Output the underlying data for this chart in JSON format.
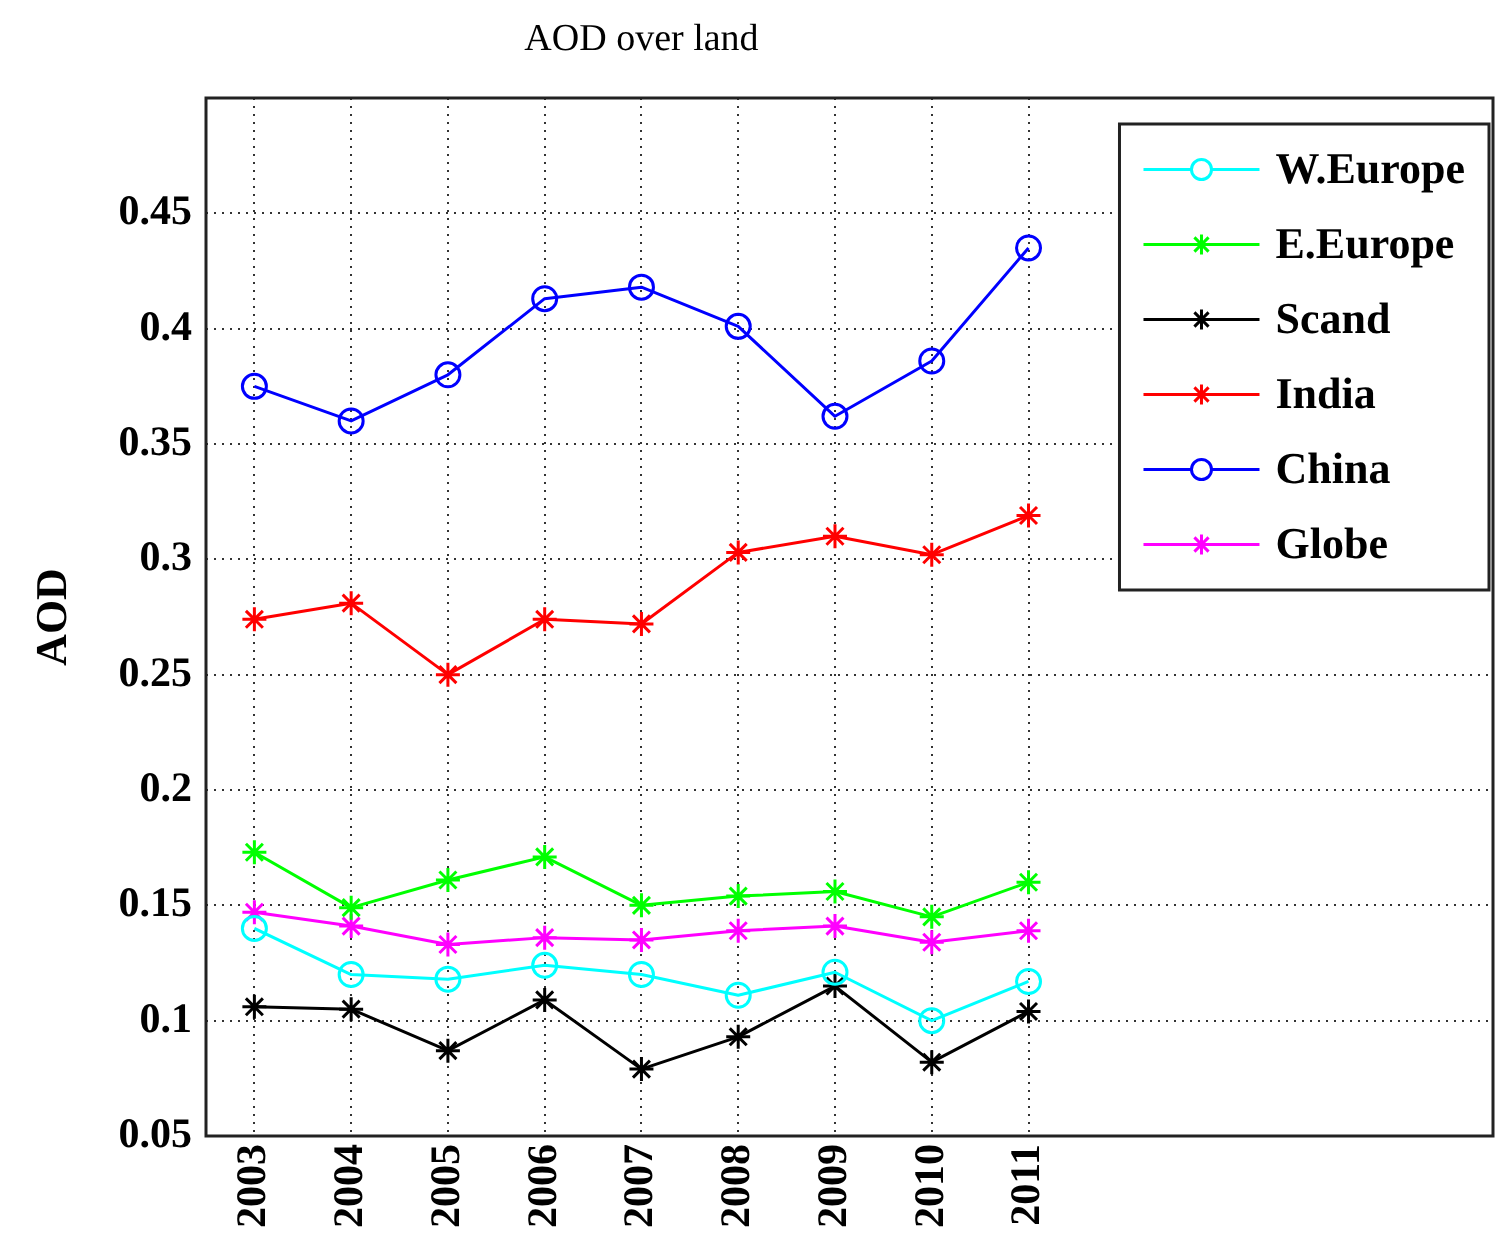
{
  "chart_data": {
    "type": "line",
    "title": "AOD over land",
    "ylabel": "AOD",
    "x": [
      2003,
      2004,
      2005,
      2006,
      2007,
      2008,
      2009,
      2010,
      2011
    ],
    "xlim": [
      2002.5,
      2015.8
    ],
    "xticks": [
      2003,
      2004,
      2005,
      2006,
      2007,
      2008,
      2009,
      2010,
      2011
    ],
    "ylim": [
      0.05,
      0.5
    ],
    "yticks": [
      0.05,
      0.1,
      0.15,
      0.2,
      0.25,
      0.3,
      0.35,
      0.4,
      0.45
    ],
    "grid": true,
    "legend": "top right",
    "series": [
      {
        "name": "W.Europe",
        "color": "#00ffff",
        "marker": "circle",
        "values": [
          0.14,
          0.12,
          0.118,
          0.124,
          0.12,
          0.111,
          0.121,
          0.1,
          0.117
        ]
      },
      {
        "name": "E.Europe",
        "color": "#00ff00",
        "marker": "cross",
        "values": [
          0.173,
          0.149,
          0.161,
          0.171,
          0.15,
          0.154,
          0.156,
          0.145,
          0.16
        ]
      },
      {
        "name": "Scand",
        "color": "#000000",
        "marker": "cross",
        "values": [
          0.106,
          0.105,
          0.087,
          0.109,
          0.079,
          0.093,
          0.115,
          0.082,
          0.104
        ]
      },
      {
        "name": "India",
        "color": "#ff0000",
        "marker": "cross",
        "values": [
          0.274,
          0.281,
          0.25,
          0.274,
          0.272,
          0.303,
          0.31,
          0.302,
          0.319
        ]
      },
      {
        "name": "China",
        "color": "#0000ff",
        "marker": "circle",
        "values": [
          0.375,
          0.36,
          0.38,
          0.413,
          0.418,
          0.401,
          0.362,
          0.386,
          0.435
        ]
      },
      {
        "name": "Globe",
        "color": "#ff00ff",
        "marker": "cross",
        "values": [
          0.147,
          0.141,
          0.133,
          0.136,
          0.135,
          0.139,
          0.141,
          0.134,
          0.139
        ]
      }
    ]
  }
}
